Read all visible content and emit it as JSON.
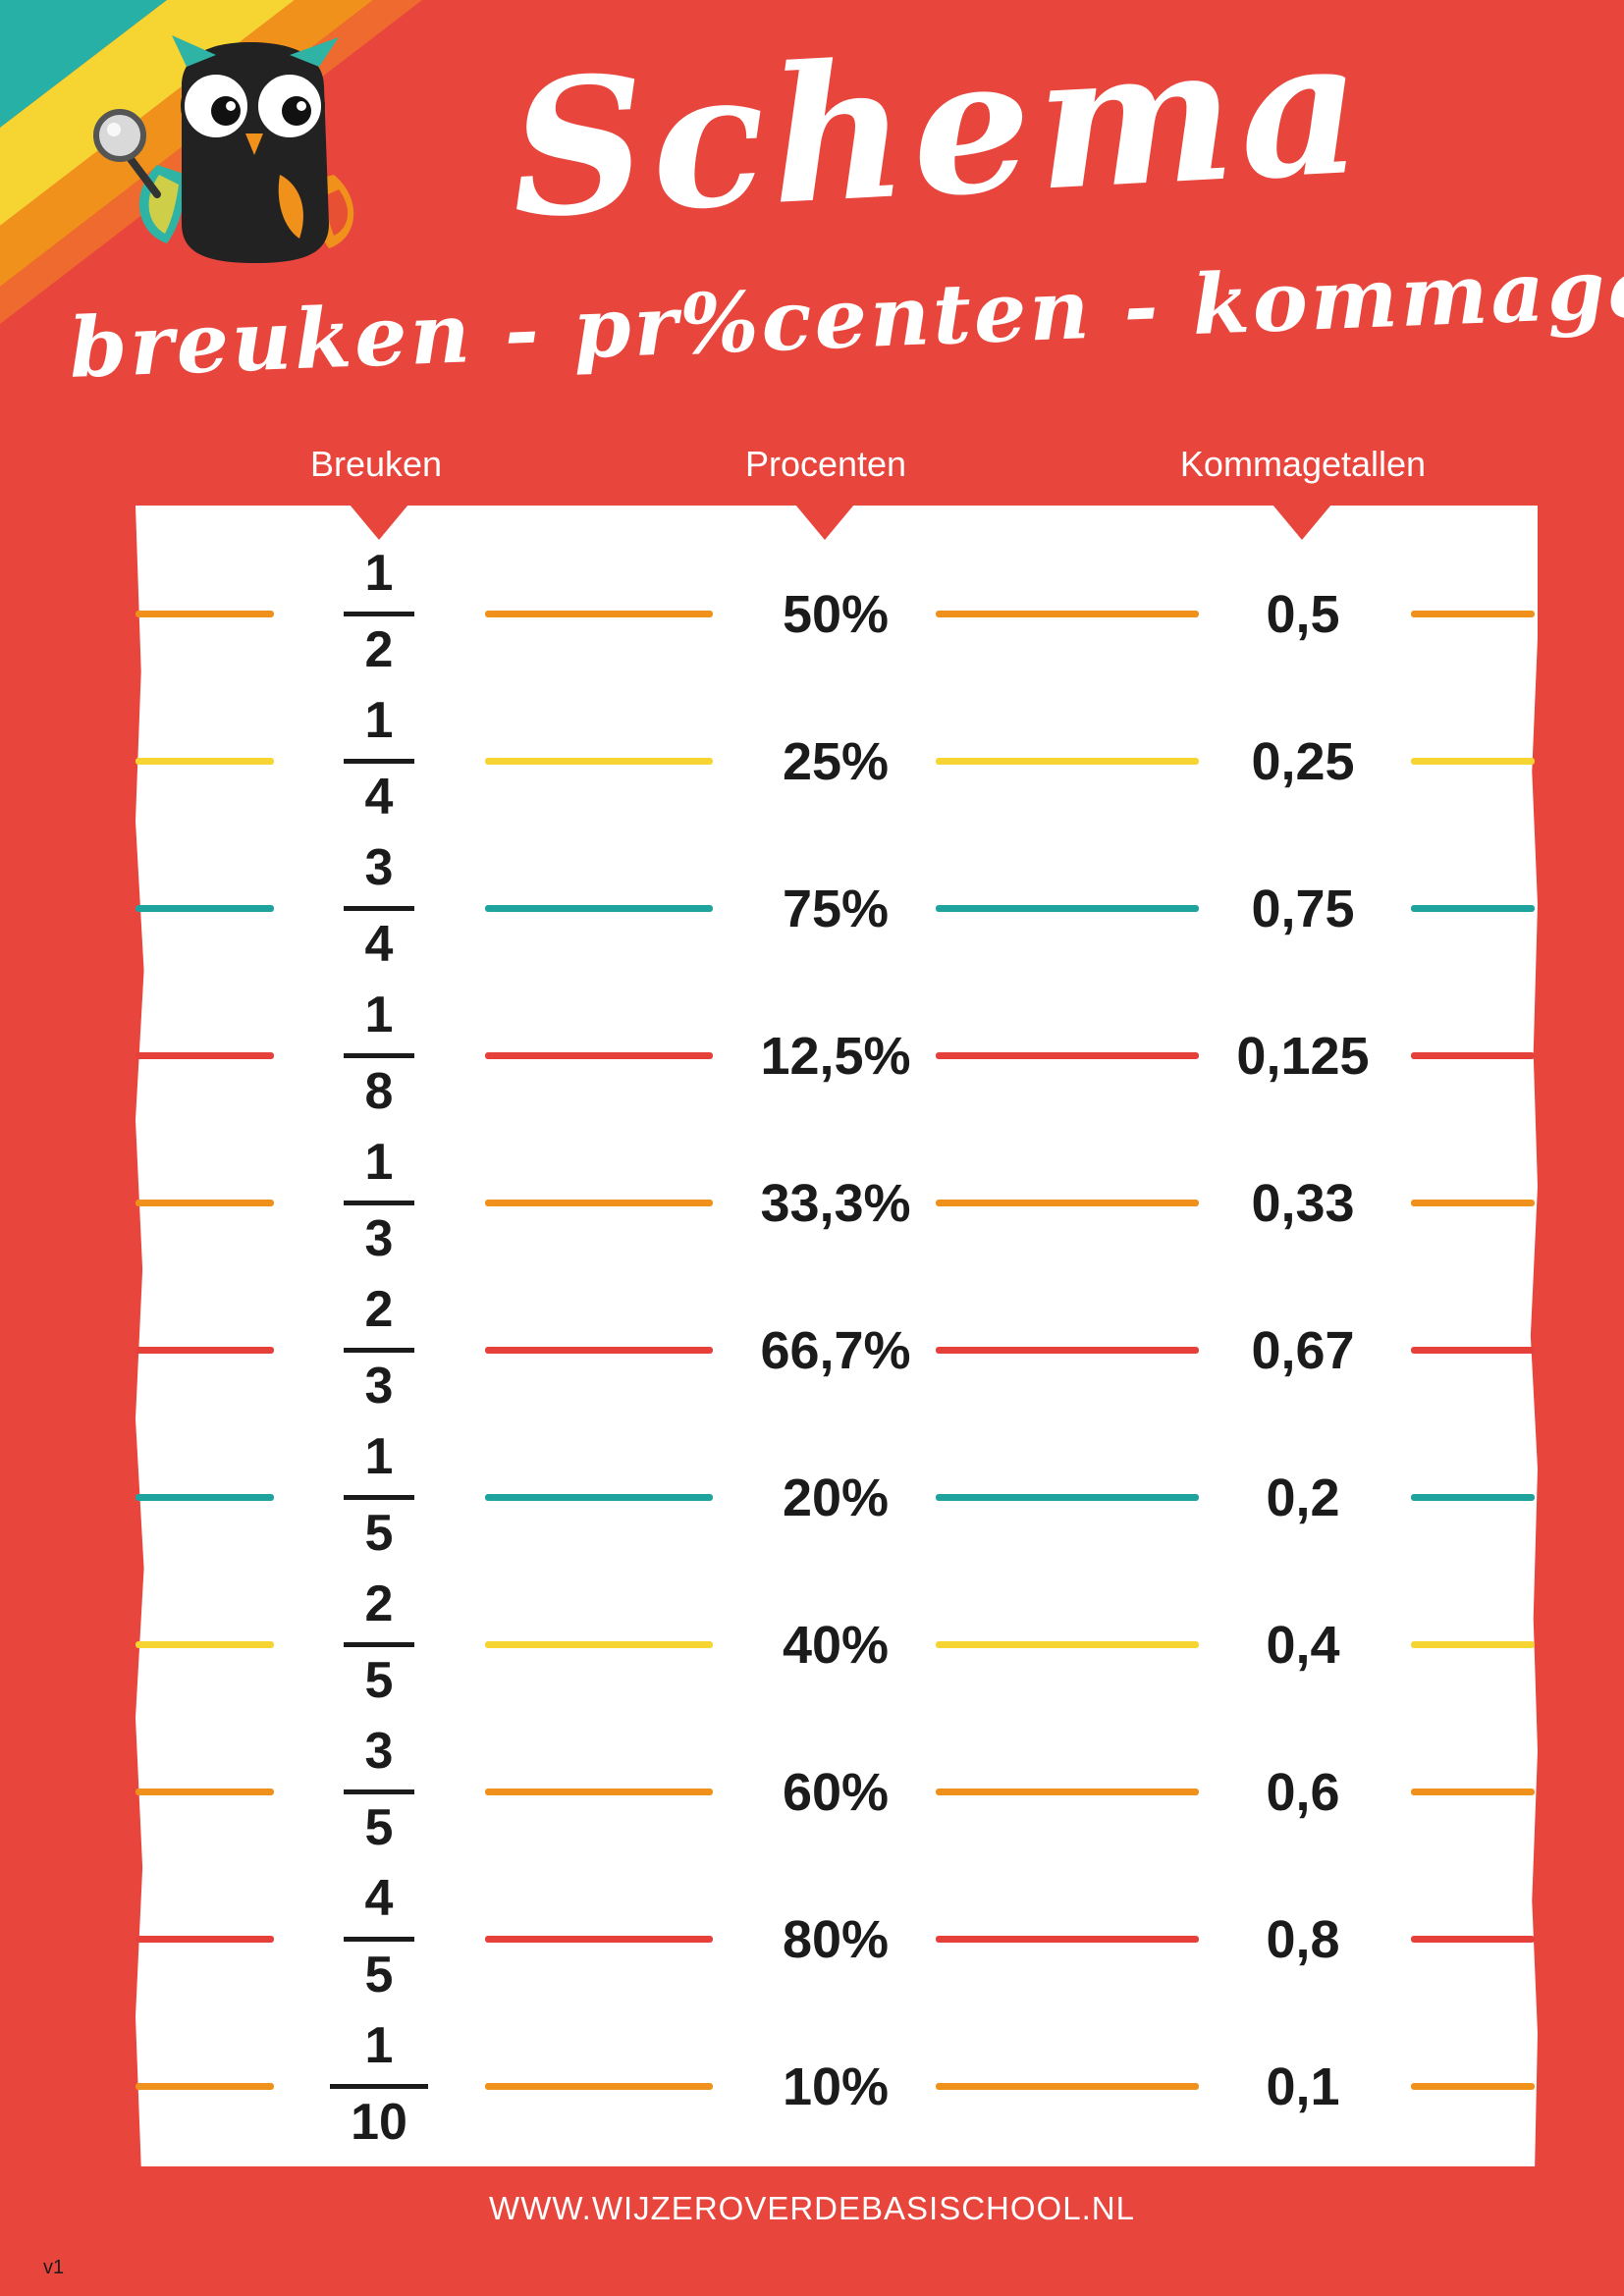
{
  "title": "Schema",
  "subtitle": "breuken - pr%centen - kommagetallen",
  "columns": {
    "breuken": "Breuken",
    "procenten": "Procenten",
    "kommagetallen": "Kommagetallen"
  },
  "colors": {
    "background": "#e8463d",
    "orange": "#f0911c",
    "yellow": "#f6d431",
    "teal": "#1fa39f",
    "red": "#e6403a",
    "text": "#1b1b1b"
  },
  "rows": [
    {
      "numerator": "1",
      "denominator": "2",
      "percent": "50%",
      "decimal": "0,5",
      "color": "#f0911c"
    },
    {
      "numerator": "1",
      "denominator": "4",
      "percent": "25%",
      "decimal": "0,25",
      "color": "#f6d431"
    },
    {
      "numerator": "3",
      "denominator": "4",
      "percent": "75%",
      "decimal": "0,75",
      "color": "#1fa39f"
    },
    {
      "numerator": "1",
      "denominator": "8",
      "percent": "12,5%",
      "decimal": "0,125",
      "color": "#e6403a"
    },
    {
      "numerator": "1",
      "denominator": "3",
      "percent": "33,3%",
      "decimal": "0,33",
      "color": "#f0911c"
    },
    {
      "numerator": "2",
      "denominator": "3",
      "percent": "66,7%",
      "decimal": "0,67",
      "color": "#e6403a"
    },
    {
      "numerator": "1",
      "denominator": "5",
      "percent": "20%",
      "decimal": "0,2",
      "color": "#1fa39f"
    },
    {
      "numerator": "2",
      "denominator": "5",
      "percent": "40%",
      "decimal": "0,4",
      "color": "#f6d431"
    },
    {
      "numerator": "3",
      "denominator": "5",
      "percent": "60%",
      "decimal": "0,6",
      "color": "#f0911c"
    },
    {
      "numerator": "4",
      "denominator": "5",
      "percent": "80%",
      "decimal": "0,8",
      "color": "#e6403a"
    },
    {
      "numerator": "1",
      "denominator": "10",
      "percent": "10%",
      "decimal": "0,1",
      "color": "#f0911c"
    }
  ],
  "footer": "WWW.WIJZEROVERDEBASISCHOOL.NL",
  "version": "v1",
  "icons": {
    "mascot": "owl-with-magnifier-icon",
    "corner": "rainbow-stripes-decoration"
  }
}
